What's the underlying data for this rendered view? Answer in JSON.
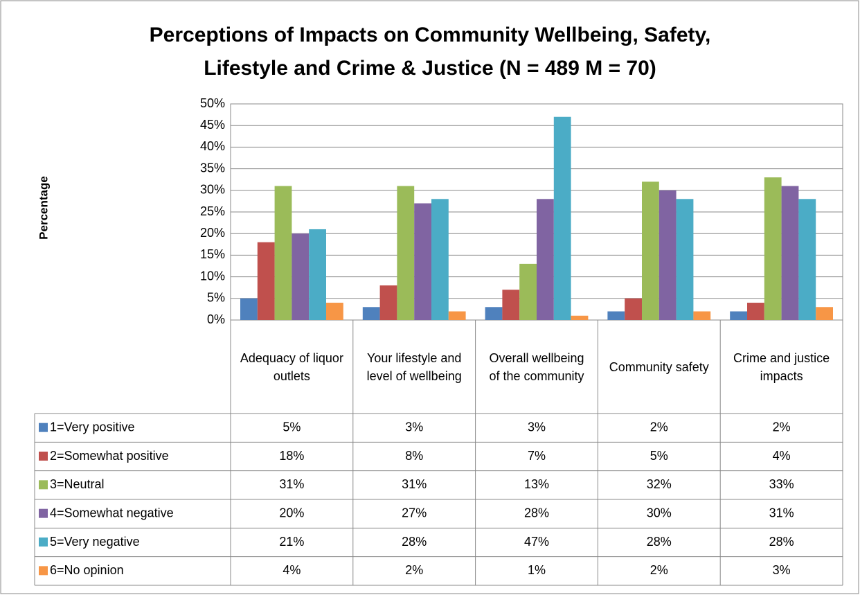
{
  "chart_data": {
    "type": "bar",
    "title": [
      "Perceptions of Impacts on Community Wellbeing, Safety,",
      "Lifestyle and Crime & Justice (N = 489 M = 70)"
    ],
    "y_label": "Percentage",
    "categories": [
      "Adequacy of liquor outlets",
      "Your lifestyle and level of wellbeing",
      "Overall wellbeing of the community",
      "Community safety",
      "Crime and justice impacts"
    ],
    "series": [
      {
        "name": "1=Very positive",
        "color": "#4f81bd",
        "values": [
          5,
          3,
          3,
          2,
          2
        ],
        "value_labels": [
          "5%",
          "3%",
          "3%",
          "2%",
          "2%"
        ]
      },
      {
        "name": "2=Somewhat positive",
        "color": "#c0504d",
        "values": [
          18,
          8,
          7,
          5,
          4
        ],
        "value_labels": [
          "18%",
          "8%",
          "7%",
          "5%",
          "4%"
        ]
      },
      {
        "name": "3=Neutral",
        "color": "#9bbb59",
        "values": [
          31,
          31,
          13,
          32,
          33
        ],
        "value_labels": [
          "31%",
          "31%",
          "13%",
          "32%",
          "33%"
        ]
      },
      {
        "name": "4=Somewhat negative",
        "color": "#8064a2",
        "values": [
          20,
          27,
          28,
          30,
          31
        ],
        "value_labels": [
          "20%",
          "27%",
          "28%",
          "30%",
          "31%"
        ]
      },
      {
        "name": "5=Very negative",
        "color": "#4bacc6",
        "values": [
          21,
          28,
          47,
          28,
          28
        ],
        "value_labels": [
          "21%",
          "28%",
          "47%",
          "28%",
          "28%"
        ]
      },
      {
        "name": "6=No opinion",
        "color": "#f79646",
        "values": [
          4,
          2,
          1,
          2,
          3
        ],
        "value_labels": [
          "4%",
          "2%",
          "1%",
          "2%",
          "3%"
        ]
      }
    ],
    "ylim": [
      0,
      50
    ],
    "yticks": [
      {
        "value": 0,
        "label": "0%"
      },
      {
        "value": 5,
        "label": "5%"
      },
      {
        "value": 10,
        "label": "10%"
      },
      {
        "value": 15,
        "label": "15%"
      },
      {
        "value": 20,
        "label": "20%"
      },
      {
        "value": 25,
        "label": "25%"
      },
      {
        "value": 30,
        "label": "30%"
      },
      {
        "value": 35,
        "label": "35%"
      },
      {
        "value": 40,
        "label": "40%"
      },
      {
        "value": 45,
        "label": "45%"
      },
      {
        "value": 50,
        "label": "50%"
      }
    ],
    "grid": true
  }
}
